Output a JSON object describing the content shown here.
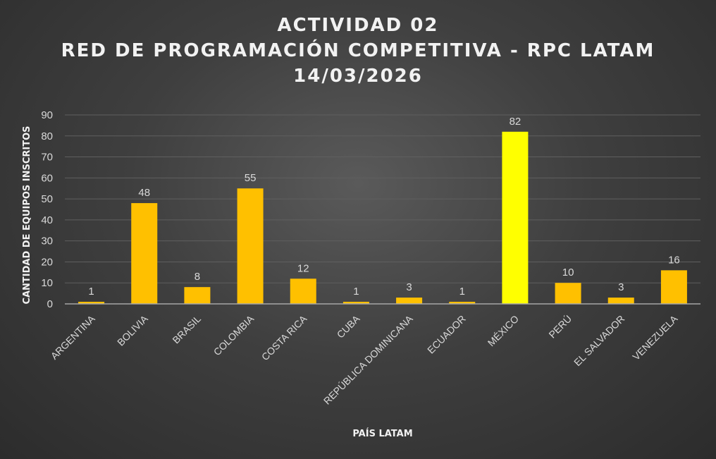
{
  "chart_data": {
    "type": "bar",
    "title_lines": [
      "ACTIVIDAD 02",
      "RED DE PROGRAMACIÓN COMPETITIVA - RPC LATAM",
      "14/03/2026"
    ],
    "xlabel": "PAÍS LATAM",
    "ylabel": "CANTIDAD DE EQUIPOS INSCRITOS",
    "ylim": [
      0,
      90
    ],
    "yticks": [
      0,
      10,
      20,
      30,
      40,
      50,
      60,
      70,
      80,
      90
    ],
    "grid": true,
    "categories": [
      "ARGENTINA",
      "BOLIVIA",
      "BRASIL",
      "COLOMBIA",
      "COSTA RICA",
      "CUBA",
      "REPÚBLICA DOMINICANA",
      "ECUADOR",
      "MÉXICO",
      "PERÚ",
      "EL SALVADOR",
      "VENEZUELA"
    ],
    "values": [
      1,
      48,
      8,
      55,
      12,
      1,
      3,
      1,
      82,
      10,
      3,
      16
    ],
    "colors": {
      "bar": "#ffc000",
      "highlight_bar": "#ffff00",
      "highlight_category": "MÉXICO",
      "gridline": "#5f5f5f",
      "axis": "#a6a6a6"
    }
  }
}
